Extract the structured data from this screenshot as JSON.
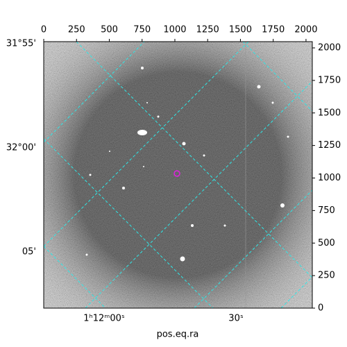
{
  "chart_data": {
    "type": "image",
    "xlabel": "pos.eq.ra",
    "xlim": [
      0,
      2048
    ],
    "xticks": [
      0,
      250,
      500,
      750,
      1000,
      1250,
      1500,
      1750,
      2000
    ],
    "ylim": [
      0,
      2048
    ],
    "yticks": [
      0,
      250,
      500,
      750,
      1000,
      1250,
      1500,
      1750,
      2000
    ],
    "dec_labels": [
      "31°55'",
      "32°00'",
      "05'"
    ],
    "ra_labels": [
      "1ʰ12ᵐ00ˢ",
      "30ˢ"
    ],
    "grid_color": "#2ee8e8"
  }
}
